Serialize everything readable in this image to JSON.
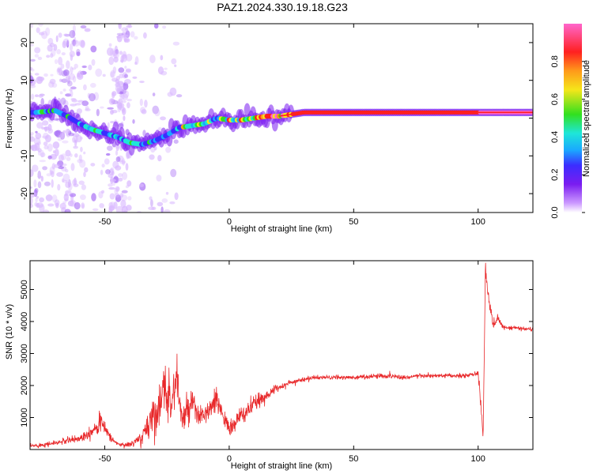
{
  "title": "PAZ1.2024.330.19.18.G23",
  "colors": {
    "snr_line": "#e8282a",
    "axis": "#000000",
    "background": "#ffffff",
    "colormap": [
      "#ffffff",
      "#cc99ff",
      "#7a1cf0",
      "#3b2dff",
      "#1aa8ff",
      "#1ee6d8",
      "#32e01e",
      "#f5e61a",
      "#ff9a1a",
      "#ff2020",
      "#ff66cc"
    ]
  },
  "chart_data": [
    {
      "type": "heatmap",
      "xlabel": "Height of straight line (km)",
      "ylabel": "Frequency (Hz)",
      "xlim": [
        -80,
        122
      ],
      "ylim": [
        -25,
        25
      ],
      "xticks": [
        "-50",
        "0",
        "50",
        "100"
      ],
      "yticks": [
        "-20",
        "-10",
        "0",
        "10",
        "20"
      ],
      "colorbar": {
        "label": "Normalized spectral amplitude",
        "range": [
          0,
          1
        ],
        "ticks": [
          "0.0",
          "0.2",
          "0.4",
          "0.6",
          "0.8"
        ]
      },
      "ridge": {
        "x": [
          -78,
          -70,
          -65,
          -60,
          -55,
          -50,
          -45,
          -40,
          -35,
          -30,
          -25,
          -20,
          -15,
          -10,
          -5,
          0,
          5,
          10,
          15,
          20,
          25,
          30,
          40,
          50,
          60,
          70,
          80,
          90,
          100,
          110,
          122
        ],
        "y": [
          1.5,
          2.0,
          0.5,
          -1.5,
          -3.0,
          -4.0,
          -5.0,
          -6.5,
          -7.0,
          -6.0,
          -4.5,
          -2.5,
          -2.0,
          -1.5,
          0.0,
          -0.5,
          -0.5,
          0.0,
          0.5,
          0.5,
          1.0,
          1.5,
          1.5,
          1.5,
          1.5,
          1.5,
          1.5,
          1.5,
          1.5,
          1.5,
          1.5
        ],
        "amplitude": [
          0.35,
          0.4,
          0.35,
          0.35,
          0.4,
          0.35,
          0.35,
          0.4,
          0.45,
          0.4,
          0.4,
          0.45,
          0.5,
          0.5,
          0.55,
          0.6,
          0.6,
          0.65,
          0.75,
          0.8,
          0.85,
          0.9,
          0.92,
          0.93,
          0.93,
          0.94,
          0.94,
          0.94,
          0.95,
          0.95,
          0.95
        ]
      }
    },
    {
      "type": "line",
      "xlabel": "Height of straight line (km)",
      "ylabel": "SNR (10 * v/v)",
      "xlim": [
        -80,
        122
      ],
      "ylim": [
        0,
        5900
      ],
      "xticks": [
        "-50",
        "0",
        "50",
        "100"
      ],
      "yticks": [
        "1000",
        "2000",
        "3000",
        "4000",
        "5000"
      ],
      "series": [
        {
          "x": [
            -80,
            -70,
            -60,
            -55,
            -52,
            -50,
            -47,
            -44,
            -40,
            -35,
            -32,
            -28,
            -25,
            -23,
            -21,
            -19,
            -15,
            -12,
            -8,
            -5,
            -3,
            -1,
            0,
            3,
            7,
            10,
            15,
            20,
            25,
            30,
            35,
            40,
            50,
            60,
            65,
            70,
            75,
            80,
            85,
            90,
            95,
            98,
            100,
            101,
            102,
            103,
            104,
            106,
            108,
            110,
            115,
            122
          ],
          "y": [
            100,
            200,
            350,
            600,
            850,
            700,
            300,
            150,
            150,
            350,
            900,
            1400,
            1900,
            1500,
            2300,
            900,
            1400,
            1000,
            1200,
            1500,
            1250,
            800,
            600,
            900,
            1200,
            1400,
            1700,
            1950,
            2100,
            2200,
            2250,
            2250,
            2250,
            2300,
            2300,
            2250,
            2300,
            2300,
            2300,
            2300,
            2300,
            2350,
            2400,
            1500,
            400,
            5900,
            4800,
            3900,
            4100,
            3800,
            3800,
            3750
          ],
          "noise": [
            60,
            80,
            120,
            220,
            250,
            200,
            100,
            60,
            80,
            200,
            500,
            700,
            800,
            600,
            700,
            400,
            500,
            300,
            350,
            400,
            300,
            200,
            200,
            300,
            300,
            250,
            150,
            100,
            80,
            70,
            60,
            60,
            60,
            70,
            90,
            70,
            70,
            70,
            70,
            60,
            60,
            60,
            80,
            200,
            150,
            300,
            250,
            150,
            120,
            90,
            60,
            60
          ]
        }
      ]
    }
  ]
}
